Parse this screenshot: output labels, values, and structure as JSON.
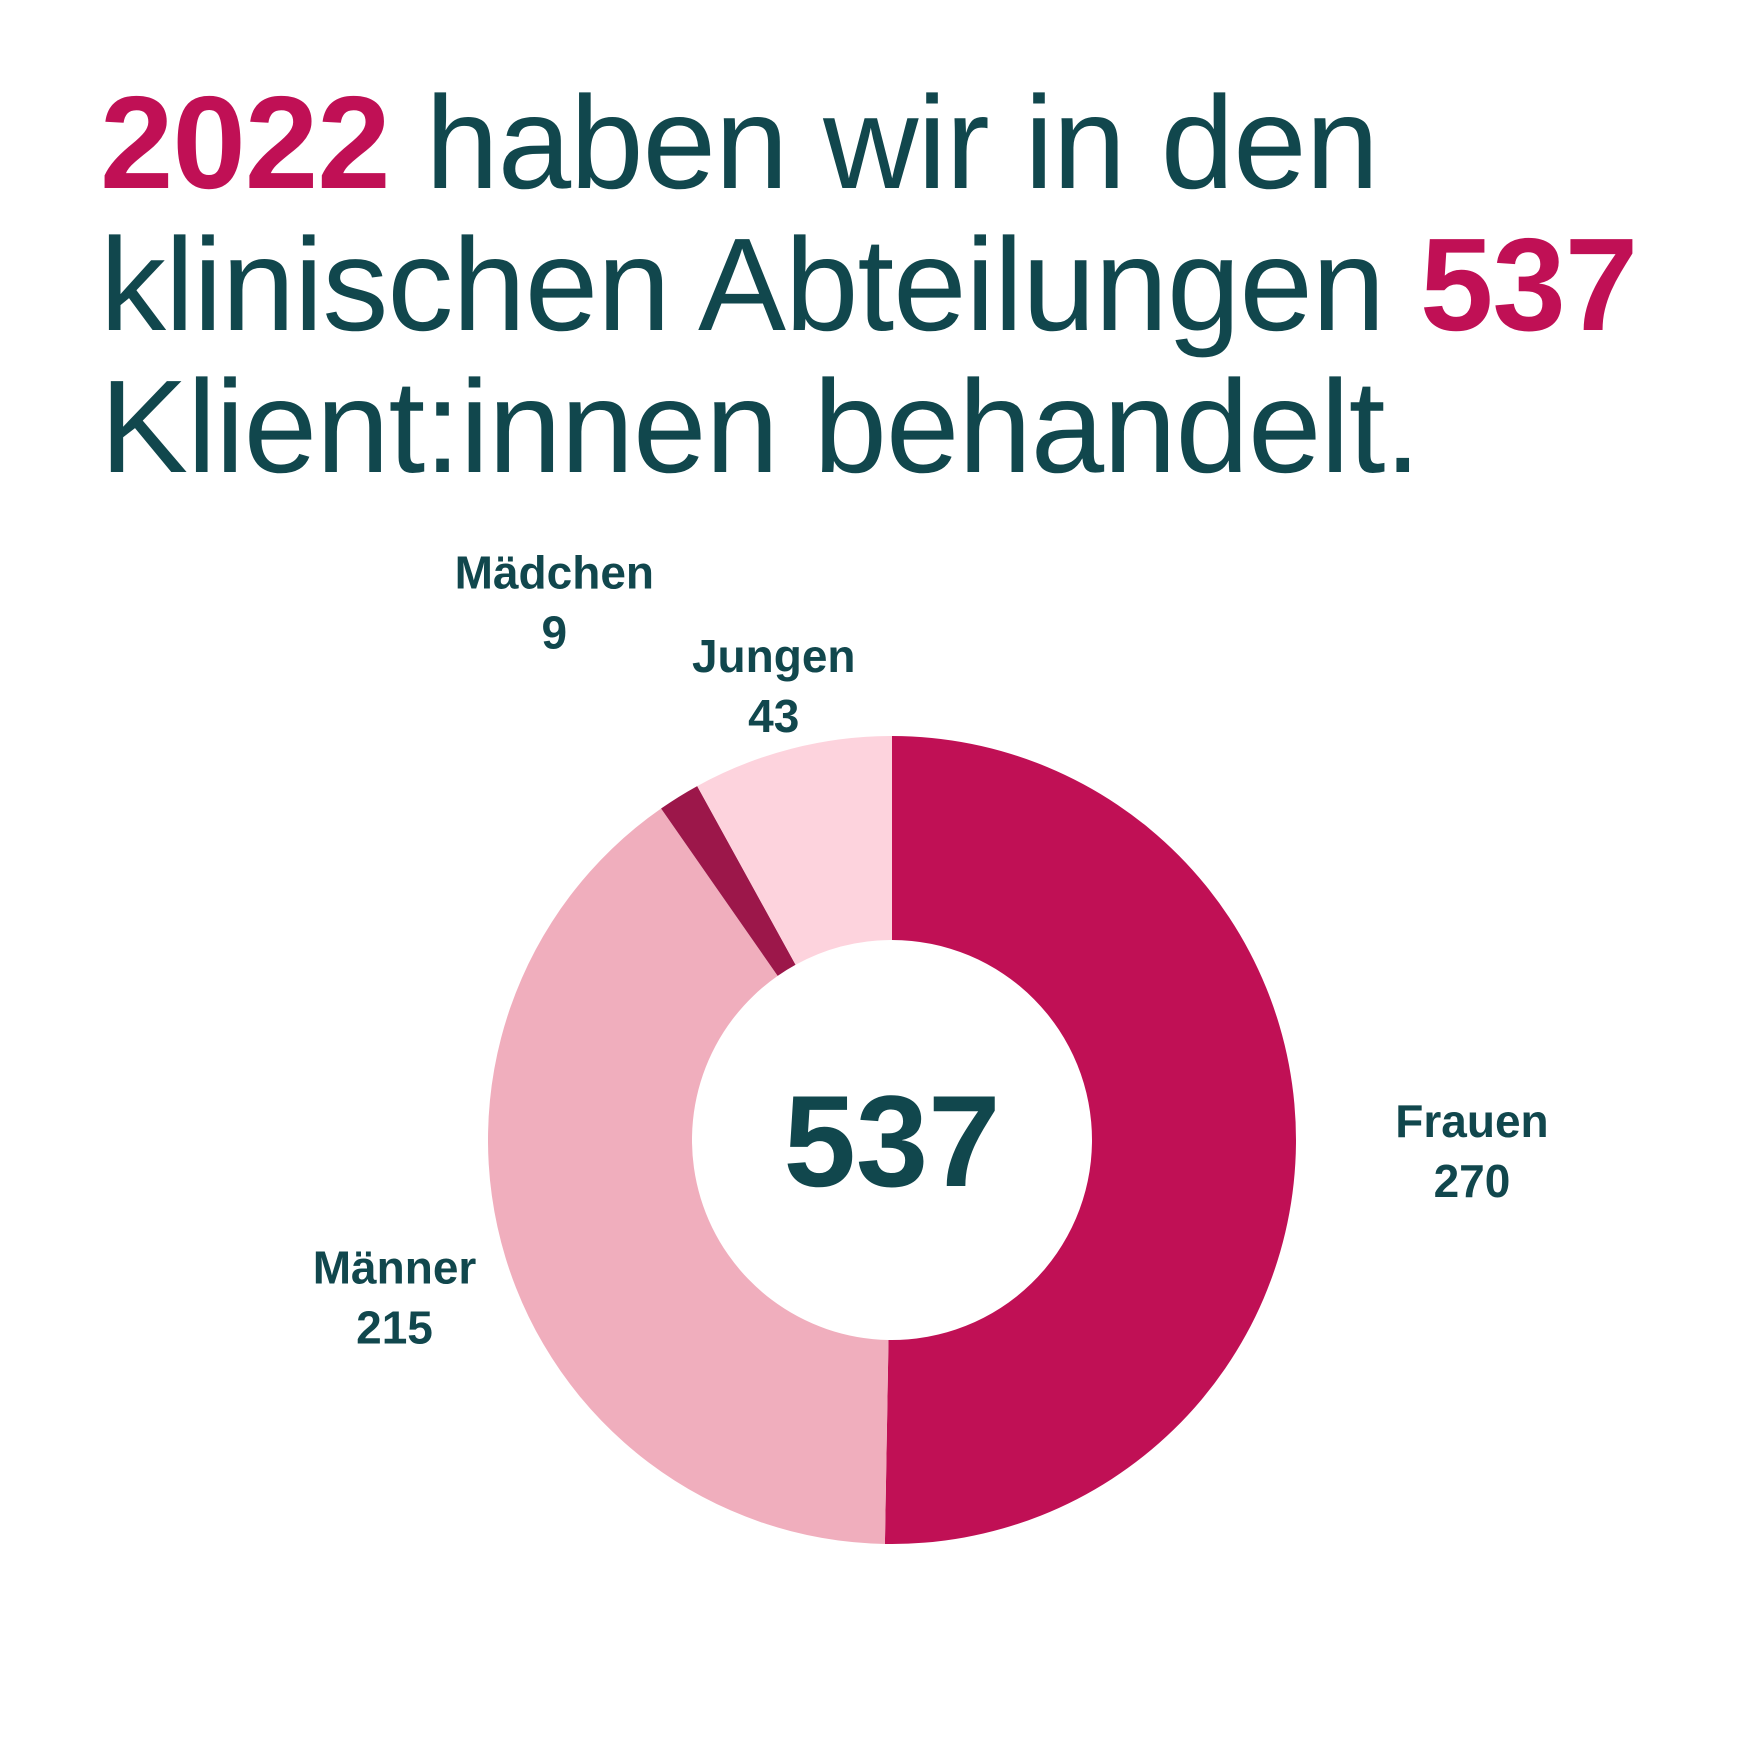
{
  "headline": {
    "year": "2022",
    "text1": " haben wir in den klinischen Abteilungen ",
    "count": "537",
    "text2": " Klient:innen behandelt."
  },
  "colors": {
    "text": "#11474d",
    "accent": "#c01055"
  },
  "chart_data": {
    "type": "pie",
    "variant": "donut",
    "title": "",
    "center_label": "537",
    "slices": [
      {
        "label": "Frauen",
        "value": 270,
        "color": "#c01055"
      },
      {
        "label": "Männer",
        "value": 215,
        "color": "#f0aebd"
      },
      {
        "label": "Mädchen",
        "value": 9,
        "color": "#9c174a"
      },
      {
        "label": "Jungen",
        "value": 43,
        "color": "#fdd3dd"
      }
    ]
  }
}
